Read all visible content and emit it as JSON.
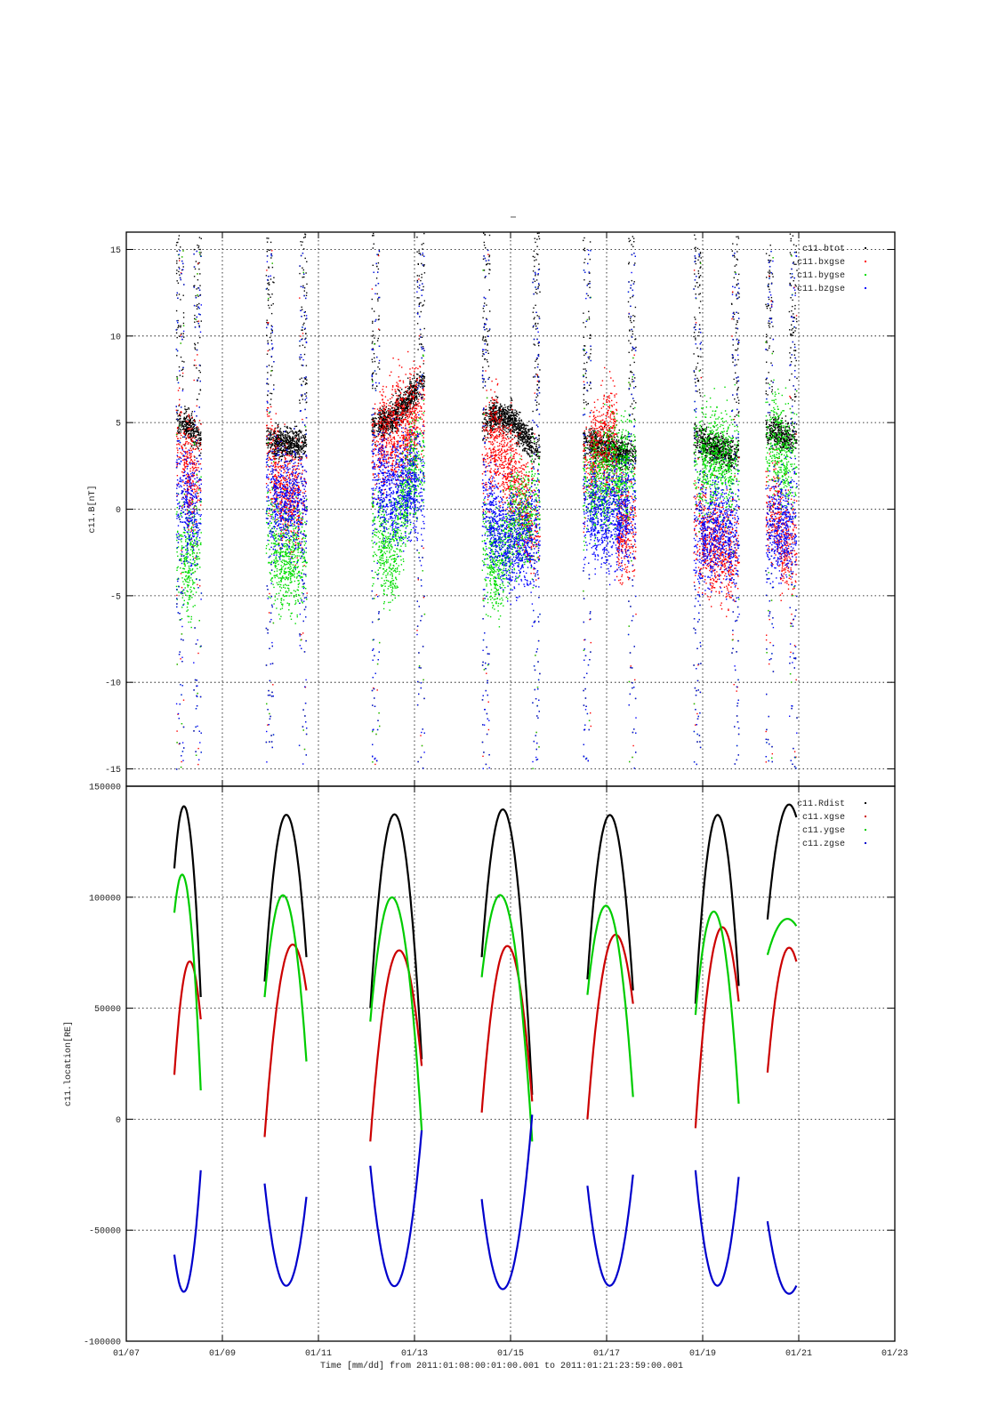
{
  "chart_data": [
    {
      "type": "scatter",
      "title": "",
      "ylabel": "c11.B[nT]",
      "ylim": [
        -16,
        16
      ],
      "yticks": [
        "-15",
        "-10",
        "-5",
        "0",
        "5",
        "10",
        "15"
      ],
      "ytick_values": [
        -15,
        -10,
        -5,
        0,
        5,
        10,
        15
      ],
      "legend_placement": "top-right",
      "grid": true,
      "segments_days": [
        [
          1.03,
          1.55
        ],
        [
          2.9,
          3.75
        ],
        [
          5.1,
          6.2
        ],
        [
          7.4,
          8.6
        ],
        [
          9.5,
          10.6
        ],
        [
          11.8,
          12.75
        ],
        [
          13.3,
          13.95
        ]
      ],
      "series": [
        {
          "name": "c11.btot",
          "color": "#000000",
          "baseline": [
            [
              1.05,
              5
            ],
            [
              1.3,
              4.8
            ],
            [
              1.55,
              4
            ],
            [
              2.9,
              4
            ],
            [
              3.2,
              3.9
            ],
            [
              3.7,
              3.8
            ],
            [
              5.1,
              4.8
            ],
            [
              5.5,
              5.2
            ],
            [
              5.9,
              6.5
            ],
            [
              6.2,
              7.5
            ],
            [
              7.4,
              5
            ],
            [
              7.7,
              5.5
            ],
            [
              8.0,
              5.2
            ],
            [
              8.5,
              3.5
            ],
            [
              9.5,
              4
            ],
            [
              10.0,
              3.5
            ],
            [
              10.5,
              3.2
            ],
            [
              11.8,
              4.2
            ],
            [
              12.2,
              3.6
            ],
            [
              12.7,
              3.2
            ],
            [
              13.3,
              4.5
            ],
            [
              13.9,
              4.2
            ]
          ]
        },
        {
          "name": "c11.bxgse",
          "color": "#ff0000",
          "baseline": [
            [
              1.05,
              4
            ],
            [
              1.3,
              2
            ],
            [
              1.55,
              2
            ],
            [
              2.9,
              4
            ],
            [
              3.2,
              1
            ],
            [
              3.7,
              0.5
            ],
            [
              5.1,
              3.5
            ],
            [
              5.5,
              4.5
            ],
            [
              5.9,
              5
            ],
            [
              6.2,
              6
            ],
            [
              7.4,
              3
            ],
            [
              7.7,
              4
            ],
            [
              8.0,
              2
            ],
            [
              8.5,
              -1
            ],
            [
              9.5,
              2
            ],
            [
              9.9,
              4
            ],
            [
              10.5,
              -1
            ],
            [
              11.8,
              -1
            ],
            [
              12.2,
              -2
            ],
            [
              12.7,
              -2.5
            ],
            [
              13.3,
              0
            ],
            [
              13.9,
              -2
            ]
          ]
        },
        {
          "name": "c11.bygse",
          "color": "#00dd00",
          "baseline": [
            [
              1.05,
              -2
            ],
            [
              1.3,
              -3.5
            ],
            [
              1.55,
              -1
            ],
            [
              2.9,
              -1
            ],
            [
              3.2,
              -3
            ],
            [
              3.7,
              -2.5
            ],
            [
              5.1,
              -1
            ],
            [
              5.5,
              -3
            ],
            [
              5.9,
              2
            ],
            [
              6.2,
              3
            ],
            [
              7.4,
              -2
            ],
            [
              7.7,
              -3.5
            ],
            [
              8.0,
              -1
            ],
            [
              8.5,
              0
            ],
            [
              9.5,
              1
            ],
            [
              10.0,
              2
            ],
            [
              10.5,
              2.5
            ],
            [
              11.8,
              3
            ],
            [
              12.2,
              3
            ],
            [
              12.7,
              2.8
            ],
            [
              13.3,
              4
            ],
            [
              13.9,
              3
            ]
          ]
        },
        {
          "name": "c11.bzgse",
          "color": "#0000ff",
          "baseline": [
            [
              1.05,
              1
            ],
            [
              1.3,
              0
            ],
            [
              1.55,
              0
            ],
            [
              2.9,
              1
            ],
            [
              3.2,
              0.5
            ],
            [
              3.7,
              0.5
            ],
            [
              5.1,
              2
            ],
            [
              5.5,
              1
            ],
            [
              5.9,
              1.5
            ],
            [
              6.2,
              1
            ],
            [
              7.4,
              0
            ],
            [
              7.7,
              -1
            ],
            [
              8.0,
              -2
            ],
            [
              8.5,
              -1.5
            ],
            [
              9.5,
              0
            ],
            [
              10.0,
              -0.5
            ],
            [
              10.5,
              0
            ],
            [
              11.8,
              -2
            ],
            [
              12.2,
              -1
            ],
            [
              12.7,
              -1.5
            ],
            [
              13.3,
              -1
            ],
            [
              13.9,
              -1
            ]
          ]
        }
      ]
    },
    {
      "type": "line",
      "title": "",
      "xlabel": "Time [mm/dd]  from 2011:01:08:00:01:00.001  to  2011:01:21:23:59:00.001",
      "ylabel": "c11.location[RE]",
      "ylim": [
        -100000,
        150000
      ],
      "yticks": [
        "-100000",
        "-50000",
        "0",
        "50000",
        "100000",
        "150000"
      ],
      "ytick_values": [
        -100000,
        -50000,
        0,
        50000,
        100000,
        150000
      ],
      "xticks": [
        "01/07",
        "01/09",
        "01/11",
        "01/13",
        "01/15",
        "01/17",
        "01/19",
        "01/21",
        "01/23"
      ],
      "x_range_days": [
        0,
        16
      ],
      "legend_placement": "top-right",
      "grid": true,
      "orbits": [
        {
          "start": 1.0,
          "end": 1.55,
          "rdist": [
            113000,
            137000,
            55000
          ],
          "xgse": [
            20000,
            70000,
            45000
          ],
          "ygse": [
            93000,
            102000,
            13000
          ],
          "zgse": [
            -61000,
            -75000,
            -23000
          ]
        },
        {
          "start": 2.88,
          "end": 3.75,
          "rdist": [
            62000,
            137000,
            73000
          ],
          "xgse": [
            -8000,
            73000,
            58000
          ],
          "ygse": [
            55000,
            100000,
            26000
          ],
          "zgse": [
            -29000,
            -75000,
            -35000
          ]
        },
        {
          "start": 5.08,
          "end": 6.15,
          "rdist": [
            50000,
            137000,
            27000
          ],
          "xgse": [
            -10000,
            75000,
            24000
          ],
          "ygse": [
            44000,
            98000,
            -5000
          ],
          "zgse": [
            -21000,
            -75000,
            -5000
          ]
        },
        {
          "start": 7.4,
          "end": 8.45,
          "rdist": [
            73000,
            137000,
            11000
          ],
          "xgse": [
            3000,
            78000,
            8000
          ],
          "ygse": [
            64000,
            96000,
            -10000
          ],
          "zgse": [
            -36000,
            -75000,
            2000
          ]
        },
        {
          "start": 9.6,
          "end": 10.55,
          "rdist": [
            63000,
            137000,
            58000
          ],
          "xgse": [
            0,
            80000,
            52000
          ],
          "ygse": [
            56000,
            94000,
            10000
          ],
          "zgse": [
            -30000,
            -75000,
            -25000
          ]
        },
        {
          "start": 11.85,
          "end": 12.75,
          "rdist": [
            52000,
            137000,
            60000
          ],
          "xgse": [
            -4000,
            83000,
            53000
          ],
          "ygse": [
            47000,
            92000,
            7000
          ],
          "zgse": [
            -23000,
            -75000,
            -26000
          ]
        },
        {
          "start": 13.35,
          "end": 13.95,
          "rdist": [
            90000,
            136000,
            136000
          ],
          "xgse": [
            21000,
            71000,
            71000
          ],
          "ygse": [
            74000,
            89000,
            87000
          ],
          "zgse": [
            -46000,
            -75000,
            -75000
          ]
        }
      ],
      "series": [
        {
          "name": "c11.Rdist",
          "color": "#000000"
        },
        {
          "name": "c11.xgse",
          "color": "#cc0000"
        },
        {
          "name": "c11.ygse",
          "color": "#00cc00"
        },
        {
          "name": "c11.zgse",
          "color": "#0000cc"
        }
      ]
    }
  ]
}
